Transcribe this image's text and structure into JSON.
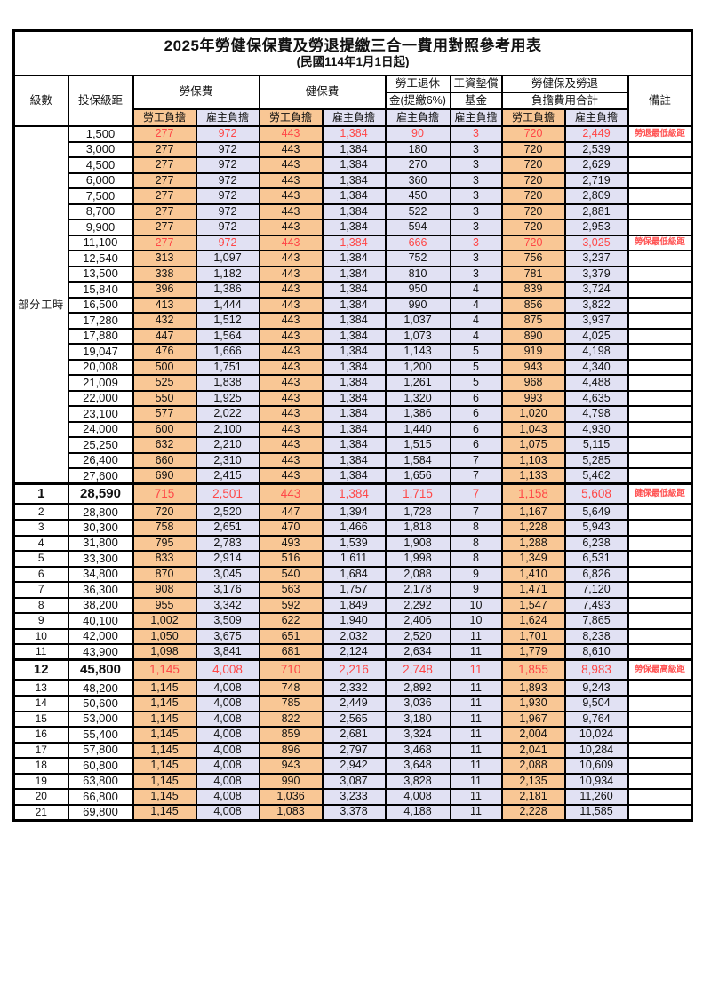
{
  "title": "2025年勞健保保費及勞退提繳三合一費用對照參考用表",
  "subtitle": "(民國114年1月1日起)",
  "header": {
    "level": "級數",
    "bracket": "投保級距",
    "labor_insurance": "勞保費",
    "health_insurance": "健保費",
    "pension_line1": "勞工退休",
    "pension_line2": "金(提繳6%)",
    "wage_fund_line1": "工資墊償",
    "wage_fund_line2": "基金",
    "total_line1": "勞健保及勞退",
    "total_line2": "負擔費用合計",
    "remark": "備註",
    "worker_share": "勞工負擔",
    "employer_share": "雇主負擔"
  },
  "part_time_label": "部分工時",
  "colors": {
    "worker_bg": "#F9C795",
    "employer_bg": "#E1E1F3",
    "highlight_text": "#FF4747",
    "remark_text": "#FF5353",
    "border": "#000000"
  },
  "table": {
    "value_columns": [
      "勞保費-勞工負擔",
      "勞保費-雇主負擔",
      "健保費-勞工負擔",
      "健保費-雇主負擔",
      "勞工退休金-雇主負擔",
      "工資墊償基金-雇主負擔",
      "合計-勞工負擔",
      "合計-雇主負擔"
    ],
    "rows": [
      {
        "level": "",
        "bracket": "1,500",
        "values": [
          "277",
          "972",
          "443",
          "1,384",
          "90",
          "3",
          "720",
          "2,449"
        ],
        "remark": "勞退最低級距",
        "red": true,
        "emph": false
      },
      {
        "level": "",
        "bracket": "3,000",
        "values": [
          "277",
          "972",
          "443",
          "1,384",
          "180",
          "3",
          "720",
          "2,539"
        ],
        "remark": "",
        "red": false,
        "emph": false
      },
      {
        "level": "",
        "bracket": "4,500",
        "values": [
          "277",
          "972",
          "443",
          "1,384",
          "270",
          "3",
          "720",
          "2,629"
        ],
        "remark": "",
        "red": false,
        "emph": false
      },
      {
        "level": "",
        "bracket": "6,000",
        "values": [
          "277",
          "972",
          "443",
          "1,384",
          "360",
          "3",
          "720",
          "2,719"
        ],
        "remark": "",
        "red": false,
        "emph": false
      },
      {
        "level": "",
        "bracket": "7,500",
        "values": [
          "277",
          "972",
          "443",
          "1,384",
          "450",
          "3",
          "720",
          "2,809"
        ],
        "remark": "",
        "red": false,
        "emph": false
      },
      {
        "level": "",
        "bracket": "8,700",
        "values": [
          "277",
          "972",
          "443",
          "1,384",
          "522",
          "3",
          "720",
          "2,881"
        ],
        "remark": "",
        "red": false,
        "emph": false
      },
      {
        "level": "",
        "bracket": "9,900",
        "values": [
          "277",
          "972",
          "443",
          "1,384",
          "594",
          "3",
          "720",
          "2,953"
        ],
        "remark": "",
        "red": false,
        "emph": false
      },
      {
        "level": "",
        "bracket": "11,100",
        "values": [
          "277",
          "972",
          "443",
          "1,384",
          "666",
          "3",
          "720",
          "3,025"
        ],
        "remark": "勞保最低級距",
        "red": true,
        "emph": false
      },
      {
        "level": "",
        "bracket": "12,540",
        "values": [
          "313",
          "1,097",
          "443",
          "1,384",
          "752",
          "3",
          "756",
          "3,237"
        ],
        "remark": "",
        "red": false,
        "emph": false
      },
      {
        "level": "",
        "bracket": "13,500",
        "values": [
          "338",
          "1,182",
          "443",
          "1,384",
          "810",
          "3",
          "781",
          "3,379"
        ],
        "remark": "",
        "red": false,
        "emph": false
      },
      {
        "level": "",
        "bracket": "15,840",
        "values": [
          "396",
          "1,386",
          "443",
          "1,384",
          "950",
          "4",
          "839",
          "3,724"
        ],
        "remark": "",
        "red": false,
        "emph": false
      },
      {
        "level": "",
        "bracket": "16,500",
        "values": [
          "413",
          "1,444",
          "443",
          "1,384",
          "990",
          "4",
          "856",
          "3,822"
        ],
        "remark": "",
        "red": false,
        "emph": false
      },
      {
        "level": "",
        "bracket": "17,280",
        "values": [
          "432",
          "1,512",
          "443",
          "1,384",
          "1,037",
          "4",
          "875",
          "3,937"
        ],
        "remark": "",
        "red": false,
        "emph": false
      },
      {
        "level": "",
        "bracket": "17,880",
        "values": [
          "447",
          "1,564",
          "443",
          "1,384",
          "1,073",
          "4",
          "890",
          "4,025"
        ],
        "remark": "",
        "red": false,
        "emph": false
      },
      {
        "level": "",
        "bracket": "19,047",
        "values": [
          "476",
          "1,666",
          "443",
          "1,384",
          "1,143",
          "5",
          "919",
          "4,198"
        ],
        "remark": "",
        "red": false,
        "emph": false
      },
      {
        "level": "",
        "bracket": "20,008",
        "values": [
          "500",
          "1,751",
          "443",
          "1,384",
          "1,200",
          "5",
          "943",
          "4,340"
        ],
        "remark": "",
        "red": false,
        "emph": false
      },
      {
        "level": "",
        "bracket": "21,009",
        "values": [
          "525",
          "1,838",
          "443",
          "1,384",
          "1,261",
          "5",
          "968",
          "4,488"
        ],
        "remark": "",
        "red": false,
        "emph": false
      },
      {
        "level": "",
        "bracket": "22,000",
        "values": [
          "550",
          "1,925",
          "443",
          "1,384",
          "1,320",
          "6",
          "993",
          "4,635"
        ],
        "remark": "",
        "red": false,
        "emph": false
      },
      {
        "level": "",
        "bracket": "23,100",
        "values": [
          "577",
          "2,022",
          "443",
          "1,384",
          "1,386",
          "6",
          "1,020",
          "4,798"
        ],
        "remark": "",
        "red": false,
        "emph": false
      },
      {
        "level": "",
        "bracket": "24,000",
        "values": [
          "600",
          "2,100",
          "443",
          "1,384",
          "1,440",
          "6",
          "1,043",
          "4,930"
        ],
        "remark": "",
        "red": false,
        "emph": false
      },
      {
        "level": "",
        "bracket": "25,250",
        "values": [
          "632",
          "2,210",
          "443",
          "1,384",
          "1,515",
          "6",
          "1,075",
          "5,115"
        ],
        "remark": "",
        "red": false,
        "emph": false
      },
      {
        "level": "",
        "bracket": "26,400",
        "values": [
          "660",
          "2,310",
          "443",
          "1,384",
          "1,584",
          "7",
          "1,103",
          "5,285"
        ],
        "remark": "",
        "red": false,
        "emph": false
      },
      {
        "level": "",
        "bracket": "27,600",
        "values": [
          "690",
          "2,415",
          "443",
          "1,384",
          "1,656",
          "7",
          "1,133",
          "5,462"
        ],
        "remark": "",
        "red": false,
        "emph": false
      },
      {
        "level": "1",
        "bracket": "28,590",
        "values": [
          "715",
          "2,501",
          "443",
          "1,384",
          "1,715",
          "7",
          "1,158",
          "5,608"
        ],
        "remark": "健保最低級距",
        "red": true,
        "emph": true
      },
      {
        "level": "2",
        "bracket": "28,800",
        "values": [
          "720",
          "2,520",
          "447",
          "1,394",
          "1,728",
          "7",
          "1,167",
          "5,649"
        ],
        "remark": "",
        "red": false,
        "emph": false
      },
      {
        "level": "3",
        "bracket": "30,300",
        "values": [
          "758",
          "2,651",
          "470",
          "1,466",
          "1,818",
          "8",
          "1,228",
          "5,943"
        ],
        "remark": "",
        "red": false,
        "emph": false
      },
      {
        "level": "4",
        "bracket": "31,800",
        "values": [
          "795",
          "2,783",
          "493",
          "1,539",
          "1,908",
          "8",
          "1,288",
          "6,238"
        ],
        "remark": "",
        "red": false,
        "emph": false
      },
      {
        "level": "5",
        "bracket": "33,300",
        "values": [
          "833",
          "2,914",
          "516",
          "1,611",
          "1,998",
          "8",
          "1,349",
          "6,531"
        ],
        "remark": "",
        "red": false,
        "emph": false
      },
      {
        "level": "6",
        "bracket": "34,800",
        "values": [
          "870",
          "3,045",
          "540",
          "1,684",
          "2,088",
          "9",
          "1,410",
          "6,826"
        ],
        "remark": "",
        "red": false,
        "emph": false
      },
      {
        "level": "7",
        "bracket": "36,300",
        "values": [
          "908",
          "3,176",
          "563",
          "1,757",
          "2,178",
          "9",
          "1,471",
          "7,120"
        ],
        "remark": "",
        "red": false,
        "emph": false
      },
      {
        "level": "8",
        "bracket": "38,200",
        "values": [
          "955",
          "3,342",
          "592",
          "1,849",
          "2,292",
          "10",
          "1,547",
          "7,493"
        ],
        "remark": "",
        "red": false,
        "emph": false
      },
      {
        "level": "9",
        "bracket": "40,100",
        "values": [
          "1,002",
          "3,509",
          "622",
          "1,940",
          "2,406",
          "10",
          "1,624",
          "7,865"
        ],
        "remark": "",
        "red": false,
        "emph": false
      },
      {
        "level": "10",
        "bracket": "42,000",
        "values": [
          "1,050",
          "3,675",
          "651",
          "2,032",
          "2,520",
          "11",
          "1,701",
          "8,238"
        ],
        "remark": "",
        "red": false,
        "emph": false
      },
      {
        "level": "11",
        "bracket": "43,900",
        "values": [
          "1,098",
          "3,841",
          "681",
          "2,124",
          "2,634",
          "11",
          "1,779",
          "8,610"
        ],
        "remark": "",
        "red": false,
        "emph": false
      },
      {
        "level": "12",
        "bracket": "45,800",
        "values": [
          "1,145",
          "4,008",
          "710",
          "2,216",
          "2,748",
          "11",
          "1,855",
          "8,983"
        ],
        "remark": "勞保最高級距",
        "red": true,
        "emph": true
      },
      {
        "level": "13",
        "bracket": "48,200",
        "values": [
          "1,145",
          "4,008",
          "748",
          "2,332",
          "2,892",
          "11",
          "1,893",
          "9,243"
        ],
        "remark": "",
        "red": false,
        "emph": false
      },
      {
        "level": "14",
        "bracket": "50,600",
        "values": [
          "1,145",
          "4,008",
          "785",
          "2,449",
          "3,036",
          "11",
          "1,930",
          "9,504"
        ],
        "remark": "",
        "red": false,
        "emph": false
      },
      {
        "level": "15",
        "bracket": "53,000",
        "values": [
          "1,145",
          "4,008",
          "822",
          "2,565",
          "3,180",
          "11",
          "1,967",
          "9,764"
        ],
        "remark": "",
        "red": false,
        "emph": false
      },
      {
        "level": "16",
        "bracket": "55,400",
        "values": [
          "1,145",
          "4,008",
          "859",
          "2,681",
          "3,324",
          "11",
          "2,004",
          "10,024"
        ],
        "remark": "",
        "red": false,
        "emph": false
      },
      {
        "level": "17",
        "bracket": "57,800",
        "values": [
          "1,145",
          "4,008",
          "896",
          "2,797",
          "3,468",
          "11",
          "2,041",
          "10,284"
        ],
        "remark": "",
        "red": false,
        "emph": false
      },
      {
        "level": "18",
        "bracket": "60,800",
        "values": [
          "1,145",
          "4,008",
          "943",
          "2,942",
          "3,648",
          "11",
          "2,088",
          "10,609"
        ],
        "remark": "",
        "red": false,
        "emph": false
      },
      {
        "level": "19",
        "bracket": "63,800",
        "values": [
          "1,145",
          "4,008",
          "990",
          "3,087",
          "3,828",
          "11",
          "2,135",
          "10,934"
        ],
        "remark": "",
        "red": false,
        "emph": false
      },
      {
        "level": "20",
        "bracket": "66,800",
        "values": [
          "1,145",
          "4,008",
          "1,036",
          "3,233",
          "4,008",
          "11",
          "2,181",
          "11,260"
        ],
        "remark": "",
        "red": false,
        "emph": false
      },
      {
        "level": "21",
        "bracket": "69,800",
        "values": [
          "1,145",
          "4,008",
          "1,083",
          "3,378",
          "4,188",
          "11",
          "2,228",
          "11,585"
        ],
        "remark": "",
        "red": false,
        "emph": false
      }
    ]
  }
}
